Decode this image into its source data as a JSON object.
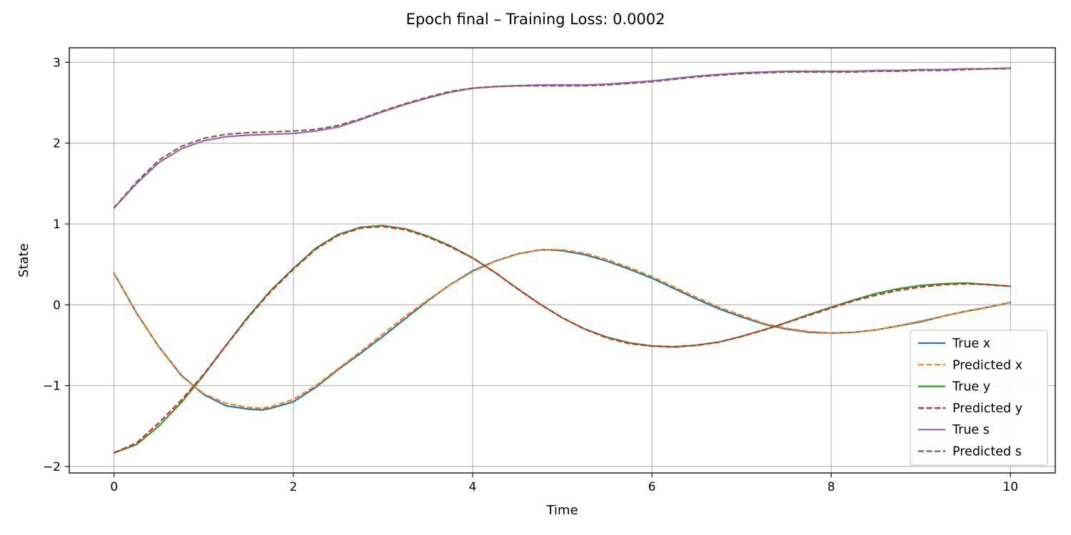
{
  "chart_data": {
    "type": "line",
    "title": "Epoch final – Training Loss: 0.0002",
    "xlabel": "Time",
    "ylabel": "State",
    "xlim": [
      -0.5,
      10.5
    ],
    "ylim": [
      -2.08,
      3.18
    ],
    "xticks": [
      0,
      2,
      4,
      6,
      8,
      10
    ],
    "yticks": [
      -2,
      -1,
      0,
      1,
      2,
      3
    ],
    "xtick_labels": [
      "0",
      "2",
      "4",
      "6",
      "8",
      "10"
    ],
    "ytick_labels": [
      "−2",
      "−1",
      "0",
      "1",
      "2",
      "3"
    ],
    "grid": true,
    "legend_position": "lower-right",
    "series": [
      {
        "name": "True x",
        "color": "#1f77b4",
        "style": "solid",
        "x": [
          0,
          0.25,
          0.5,
          0.75,
          1,
          1.25,
          1.5,
          1.65,
          1.75,
          2,
          2.25,
          2.5,
          2.75,
          3,
          3.25,
          3.5,
          3.75,
          4,
          4.25,
          4.5,
          4.75,
          4.85,
          5,
          5.25,
          5.5,
          5.75,
          6,
          6.25,
          6.5,
          6.75,
          7,
          7.25,
          7.5,
          7.75,
          8,
          8.25,
          8.5,
          8.75,
          9,
          9.25,
          9.5,
          9.75,
          10
        ],
        "y": [
          0.39,
          -0.1,
          -0.52,
          -0.87,
          -1.11,
          -1.25,
          -1.29,
          -1.3,
          -1.28,
          -1.2,
          -1.02,
          -0.8,
          -0.6,
          -0.39,
          -0.17,
          0.05,
          0.25,
          0.42,
          0.54,
          0.63,
          0.68,
          0.68,
          0.67,
          0.62,
          0.54,
          0.44,
          0.33,
          0.2,
          0.07,
          -0.05,
          -0.15,
          -0.24,
          -0.3,
          -0.34,
          -0.35,
          -0.34,
          -0.31,
          -0.26,
          -0.21,
          -0.14,
          -0.08,
          -0.03,
          0.03
        ]
      },
      {
        "name": "Predicted x",
        "color": "#ff7f0e",
        "style": "dashed",
        "x": [
          0,
          0.25,
          0.5,
          0.75,
          1,
          1.25,
          1.5,
          1.65,
          1.75,
          2,
          2.25,
          2.5,
          2.75,
          3,
          3.25,
          3.5,
          3.75,
          4,
          4.25,
          4.5,
          4.75,
          4.85,
          5,
          5.25,
          5.5,
          5.75,
          6,
          6.25,
          6.5,
          6.75,
          7,
          7.25,
          7.5,
          7.75,
          8,
          8.25,
          8.5,
          8.75,
          9,
          9.25,
          9.5,
          9.75,
          10
        ],
        "y": [
          0.39,
          -0.1,
          -0.52,
          -0.88,
          -1.1,
          -1.22,
          -1.27,
          -1.28,
          -1.26,
          -1.17,
          -1.0,
          -0.79,
          -0.58,
          -0.36,
          -0.14,
          0.06,
          0.25,
          0.41,
          0.54,
          0.63,
          0.68,
          0.68,
          0.68,
          0.64,
          0.56,
          0.46,
          0.35,
          0.22,
          0.09,
          -0.03,
          -0.13,
          -0.23,
          -0.29,
          -0.33,
          -0.35,
          -0.34,
          -0.31,
          -0.26,
          -0.2,
          -0.14,
          -0.08,
          -0.03,
          0.03
        ]
      },
      {
        "name": "True y",
        "color": "#2ca02c",
        "style": "solid",
        "x": [
          0,
          0.25,
          0.5,
          0.75,
          1,
          1.25,
          1.5,
          1.75,
          2,
          2.25,
          2.5,
          2.75,
          3,
          3.25,
          3.5,
          3.75,
          4,
          4.25,
          4.5,
          4.75,
          5,
          5.25,
          5.5,
          5.75,
          6,
          6.25,
          6.5,
          6.75,
          7,
          7.25,
          7.5,
          7.75,
          8,
          8.25,
          8.5,
          8.75,
          9,
          9.25,
          9.5,
          9.75,
          10
        ],
        "y": [
          -1.83,
          -1.73,
          -1.5,
          -1.21,
          -0.87,
          -0.5,
          -0.14,
          0.18,
          0.45,
          0.7,
          0.87,
          0.96,
          0.98,
          0.94,
          0.85,
          0.73,
          0.58,
          0.4,
          0.2,
          0.01,
          -0.16,
          -0.3,
          -0.4,
          -0.47,
          -0.51,
          -0.52,
          -0.5,
          -0.46,
          -0.39,
          -0.31,
          -0.22,
          -0.12,
          -0.03,
          0.06,
          0.14,
          0.2,
          0.24,
          0.26,
          0.27,
          0.25,
          0.23
        ]
      },
      {
        "name": "Predicted y",
        "color": "#d62728",
        "style": "dashed",
        "x": [
          0,
          0.25,
          0.5,
          0.75,
          1,
          1.25,
          1.5,
          1.75,
          2,
          2.25,
          2.5,
          2.75,
          3,
          3.25,
          3.5,
          3.75,
          4,
          4.25,
          4.5,
          4.75,
          5,
          5.25,
          5.5,
          5.75,
          6,
          6.25,
          6.5,
          6.75,
          7,
          7.25,
          7.5,
          7.75,
          8,
          8.25,
          8.5,
          8.75,
          9,
          9.25,
          9.5,
          9.75,
          10
        ],
        "y": [
          -1.83,
          -1.71,
          -1.46,
          -1.18,
          -0.86,
          -0.5,
          -0.15,
          0.17,
          0.44,
          0.69,
          0.86,
          0.95,
          0.97,
          0.93,
          0.84,
          0.72,
          0.58,
          0.4,
          0.2,
          0.01,
          -0.16,
          -0.3,
          -0.41,
          -0.48,
          -0.51,
          -0.52,
          -0.5,
          -0.46,
          -0.39,
          -0.31,
          -0.22,
          -0.13,
          -0.04,
          0.05,
          0.12,
          0.18,
          0.22,
          0.25,
          0.26,
          0.25,
          0.23
        ]
      },
      {
        "name": "True s",
        "color": "#9467bd",
        "style": "solid",
        "x": [
          0,
          0.25,
          0.5,
          0.75,
          1,
          1.25,
          1.5,
          1.75,
          2,
          2.25,
          2.5,
          2.75,
          3,
          3.25,
          3.5,
          3.75,
          4,
          4.25,
          4.5,
          4.75,
          5,
          5.25,
          5.5,
          5.75,
          6,
          6.25,
          6.5,
          6.75,
          7,
          7.25,
          7.5,
          7.75,
          8,
          8.25,
          8.5,
          8.75,
          9,
          9.25,
          9.5,
          9.75,
          10
        ],
        "y": [
          1.2,
          1.5,
          1.76,
          1.93,
          2.03,
          2.08,
          2.1,
          2.11,
          2.12,
          2.15,
          2.2,
          2.29,
          2.39,
          2.48,
          2.56,
          2.63,
          2.68,
          2.7,
          2.71,
          2.72,
          2.72,
          2.72,
          2.73,
          2.75,
          2.77,
          2.8,
          2.83,
          2.85,
          2.87,
          2.88,
          2.89,
          2.89,
          2.89,
          2.89,
          2.9,
          2.9,
          2.91,
          2.91,
          2.92,
          2.92,
          2.93
        ]
      },
      {
        "name": "Predicted s",
        "color": "#8c564b",
        "style": "dashed",
        "x": [
          0,
          0.25,
          0.5,
          0.75,
          1,
          1.25,
          1.5,
          1.75,
          2,
          2.25,
          2.5,
          2.75,
          3,
          3.25,
          3.5,
          3.75,
          4,
          4.25,
          4.5,
          4.75,
          5,
          5.25,
          5.5,
          5.75,
          6,
          6.25,
          6.5,
          6.75,
          7,
          7.25,
          7.5,
          7.75,
          8,
          8.25,
          8.5,
          8.75,
          9,
          9.25,
          9.5,
          9.75,
          10
        ],
        "y": [
          1.2,
          1.52,
          1.79,
          1.96,
          2.06,
          2.11,
          2.13,
          2.14,
          2.15,
          2.17,
          2.22,
          2.3,
          2.4,
          2.49,
          2.57,
          2.64,
          2.68,
          2.7,
          2.71,
          2.71,
          2.71,
          2.71,
          2.72,
          2.74,
          2.76,
          2.79,
          2.82,
          2.84,
          2.86,
          2.87,
          2.88,
          2.88,
          2.88,
          2.88,
          2.89,
          2.89,
          2.9,
          2.9,
          2.91,
          2.92,
          2.92
        ]
      }
    ]
  }
}
